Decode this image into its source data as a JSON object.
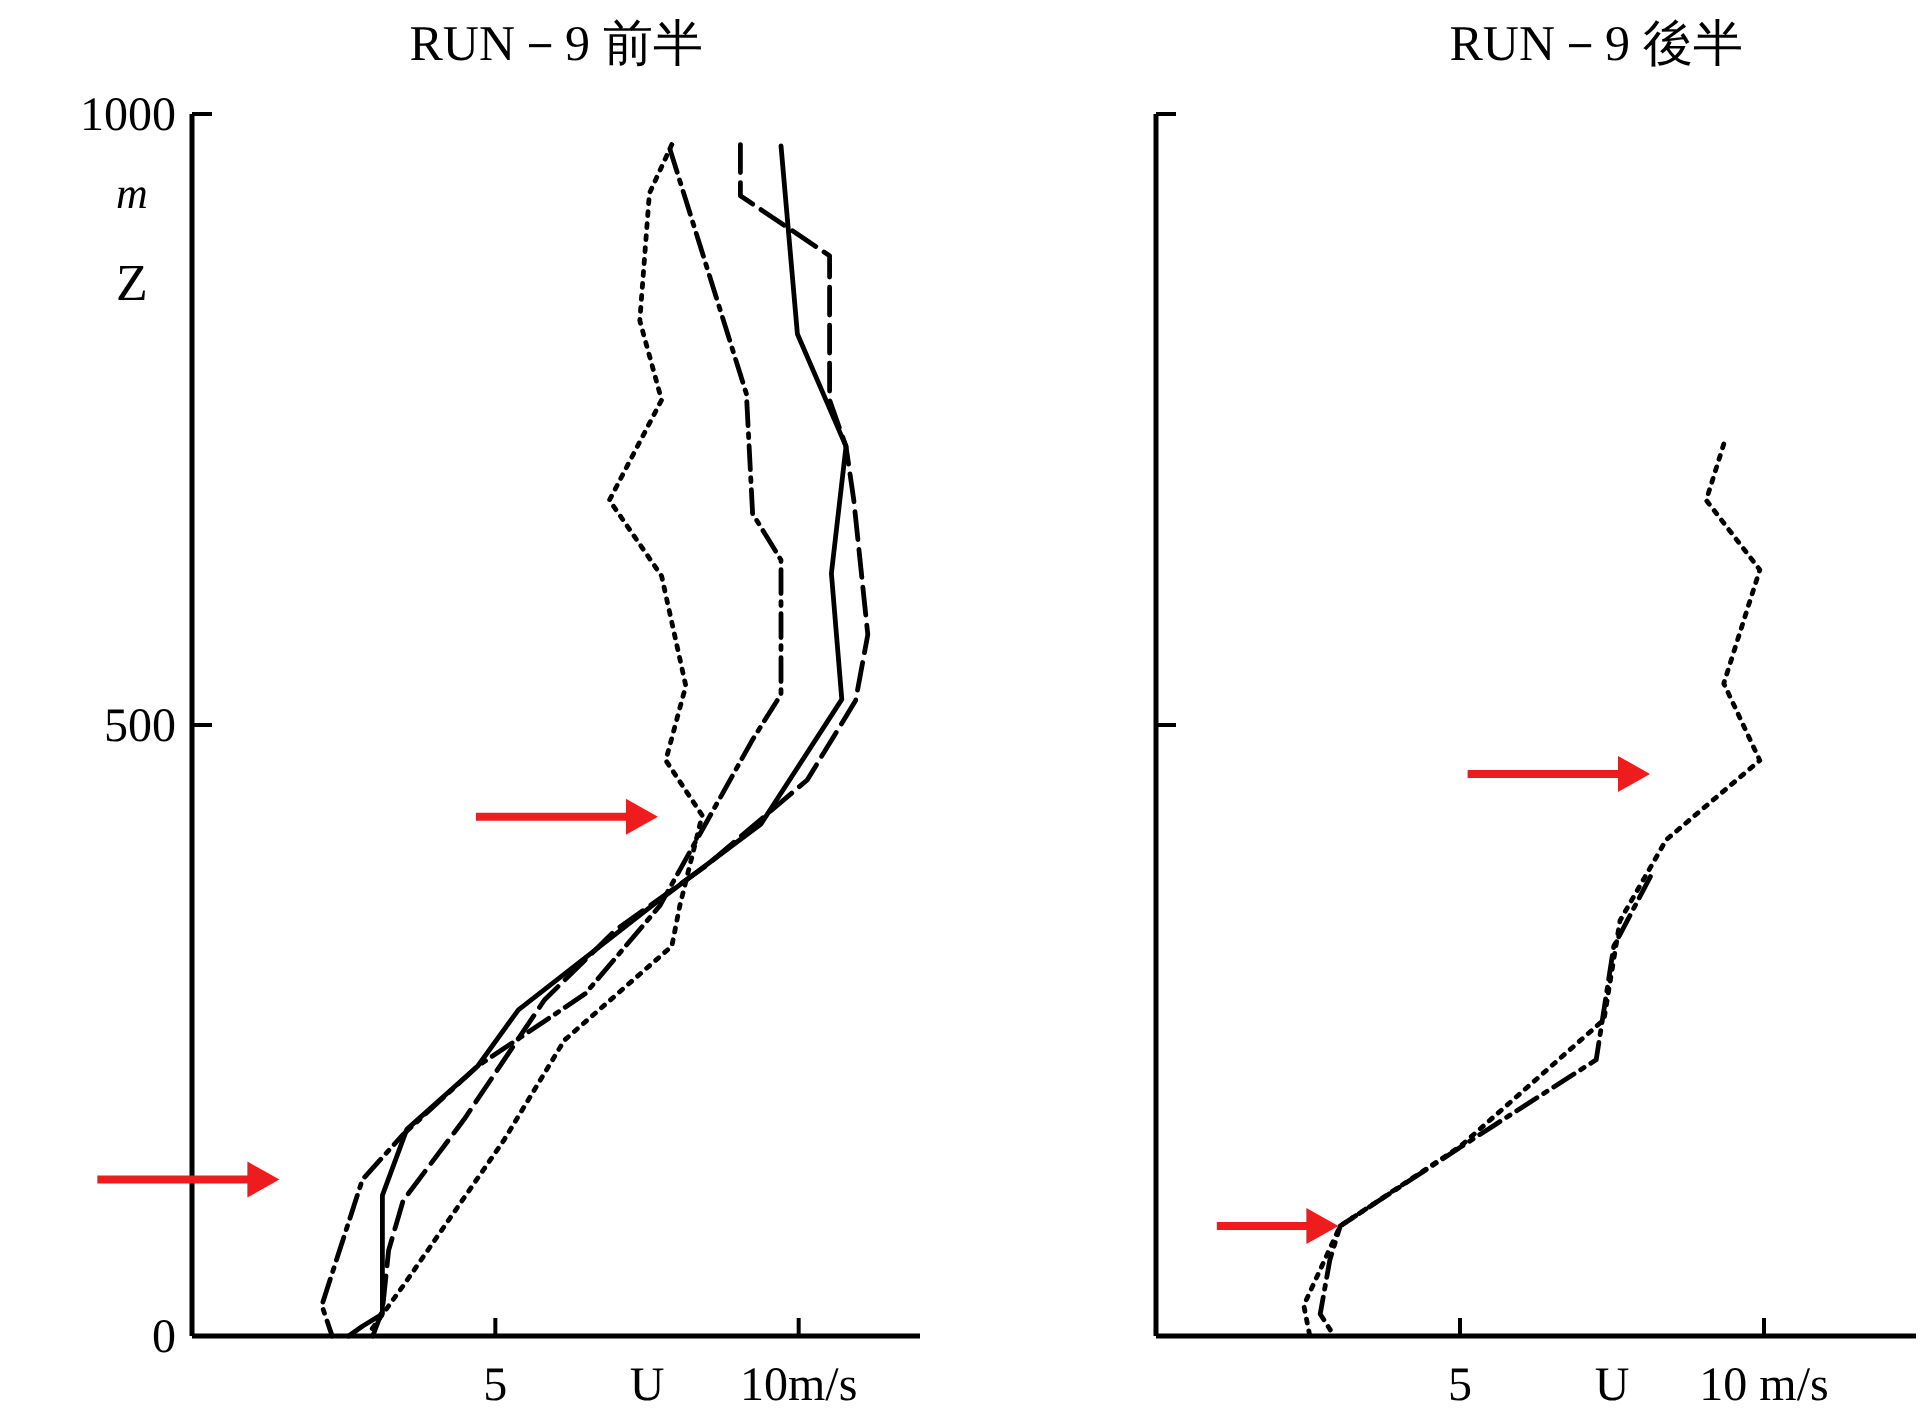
{
  "chart_data": [
    {
      "type": "line",
      "title": "RUN－9 前半",
      "xlabel": "U",
      "ylabel": "Z",
      "annotations": [
        "m"
      ],
      "xlim": [
        0,
        12
      ],
      "ylim": [
        0,
        1000
      ],
      "xticks": [
        5,
        {
          "value": 10,
          "label": "10m/s"
        }
      ],
      "yticks": [
        0,
        500,
        1000
      ],
      "series": [
        {
          "color": "#000000",
          "line_style": "solid",
          "x": [
            9.71,
            9.98,
            10.78,
            10.54,
            10.71,
            9.38,
            7.58,
            5.38,
            4.71,
            3.54,
            3.14,
            3.14,
            2.81,
            2.58
          ],
          "values": [
            974,
            820,
            728,
            624,
            521,
            419,
            352,
            267,
            221,
            169,
            115,
            18,
            8,
            0
          ]
        },
        {
          "color": "#000000",
          "line_style": "dashed",
          "x": [
            9.04,
            9.04,
            10.51,
            10.51,
            10.78,
            10.91,
            11.14,
            10.94,
            10.14,
            8.48,
            6.98,
            5.81,
            4.48,
            3.48,
            3.24,
            3.14,
            2.98
          ],
          "values": [
            975,
            933,
            884,
            766,
            728,
            684,
            574,
            520,
            455,
            385,
            332,
            275,
            177,
            111,
            70,
            21,
            0
          ]
        },
        {
          "color": "#000000",
          "line_style": "dashdot",
          "x": [
            7.88,
            9.14,
            9.24,
            9.71,
            9.71,
            9.24,
            7.71,
            6.48,
            4.71,
            3.48,
            2.81,
            2.14,
            2.31
          ],
          "values": [
            971,
            771,
            673,
            635,
            525,
            488,
            352,
            280,
            221,
            165,
            128,
            25,
            0
          ]
        },
        {
          "color": "#000000",
          "line_style": "dotted",
          "x": [
            7.91,
            7.54,
            7.38,
            7.74,
            6.88,
            7.74,
            8.14,
            7.81,
            8.41,
            8.04,
            7.91,
            6.14,
            5.14,
            3.48,
            2.91
          ],
          "values": [
            975,
            935,
            831,
            766,
            684,
            622,
            532,
            471,
            426,
            352,
            319,
            242,
            160,
            41,
            2
          ]
        }
      ]
    },
    {
      "type": "line",
      "title": "RUN－9 後半",
      "xlabel": "U",
      "xlim": [
        0,
        12.5
      ],
      "ylim": [
        0,
        1000
      ],
      "xticks": [
        5,
        {
          "value": 10,
          "label": "10 m/s"
        }
      ],
      "yticks": [
        {
          "value": 0,
          "label": null
        },
        {
          "value": 500,
          "label": null
        },
        {
          "value": 1000,
          "label": null
        }
      ],
      "tick_labels": "x",
      "series": [
        {
          "color": "#000000",
          "line_style": "dotted",
          "x": [
            9.34,
            9.05,
            9.93,
            9.34,
            9.93,
            8.39,
            7.63,
            7.37,
            5.0,
            3.03,
            2.43,
            2.53
          ],
          "values": [
            730,
            684,
            627,
            534,
            471,
            406,
            340,
            259,
            155,
            90,
            25,
            0
          ]
        },
        {
          "color": "#000000",
          "line_style": "dashdot",
          "x": [
            8.13,
            7.53,
            7.24,
            5.33,
            3.03,
            2.86,
            2.7,
            2.93
          ],
          "values": [
            376,
            319,
            226,
            165,
            90,
            62,
            18,
            0
          ]
        }
      ]
    }
  ]
}
